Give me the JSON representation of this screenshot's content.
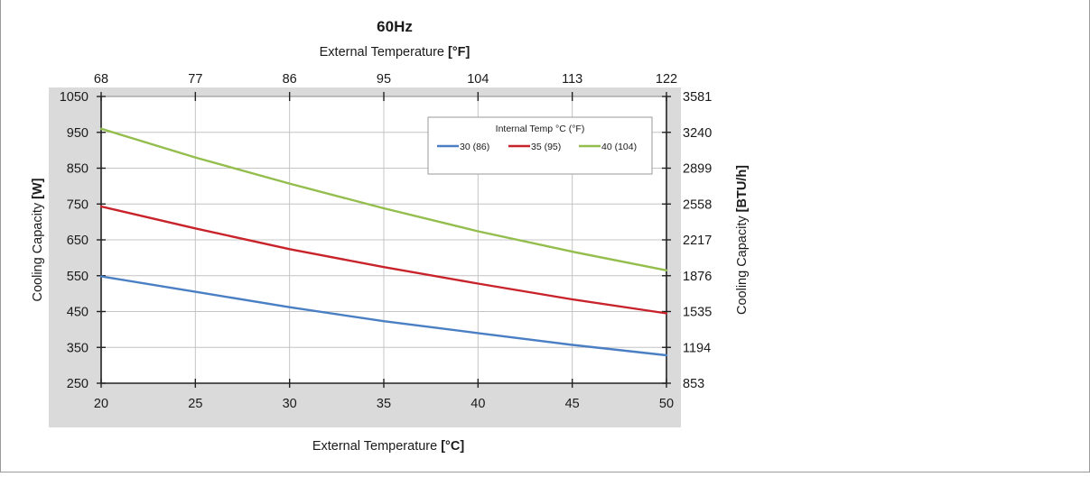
{
  "chart_data": {
    "type": "line",
    "title": "60Hz",
    "top_axis": {
      "label_prefix": "External Temperature ",
      "label_unit": "[°F]",
      "ticks": [
        "68",
        "77",
        "86",
        "95",
        "104",
        "113",
        "122"
      ]
    },
    "x": {
      "label_prefix": "External Temperature ",
      "label_unit": "[°C]",
      "ticks": [
        20,
        25,
        30,
        35,
        40,
        45,
        50
      ],
      "lim": [
        20,
        50
      ]
    },
    "y_left": {
      "label_prefix": "Cooling Capacity ",
      "label_unit": "[W]",
      "ticks": [
        250,
        350,
        450,
        550,
        650,
        750,
        850,
        950,
        1050
      ],
      "lim": [
        250,
        1050
      ]
    },
    "y_right": {
      "label_prefix": "Cooling Capacity ",
      "label_unit": "[BTU/h]",
      "ticks": [
        "853",
        "1194",
        "1535",
        "1876",
        "2217",
        "2558",
        "2899",
        "3240",
        "3581"
      ]
    },
    "grid": true,
    "legend": {
      "title": "Internal Temp °C (°F)",
      "position": "top-right"
    },
    "series": [
      {
        "name": "30 (86)",
        "color": "#4a7fc4",
        "x": [
          20,
          25,
          30,
          35,
          40,
          45,
          50
        ],
        "y": [
          548,
          505,
          462,
          423,
          390,
          357,
          328
        ]
      },
      {
        "name": "35 (95)",
        "color": "#c8232b",
        "x": [
          20,
          25,
          30,
          35,
          40,
          45,
          50
        ],
        "y": [
          743,
          682,
          624,
          574,
          528,
          484,
          445
        ]
      },
      {
        "name": "40 (104)",
        "color": "#93bd4c",
        "x": [
          20,
          25,
          30,
          35,
          40,
          45,
          50
        ],
        "y": [
          960,
          880,
          807,
          738,
          674,
          617,
          565
        ]
      }
    ]
  }
}
